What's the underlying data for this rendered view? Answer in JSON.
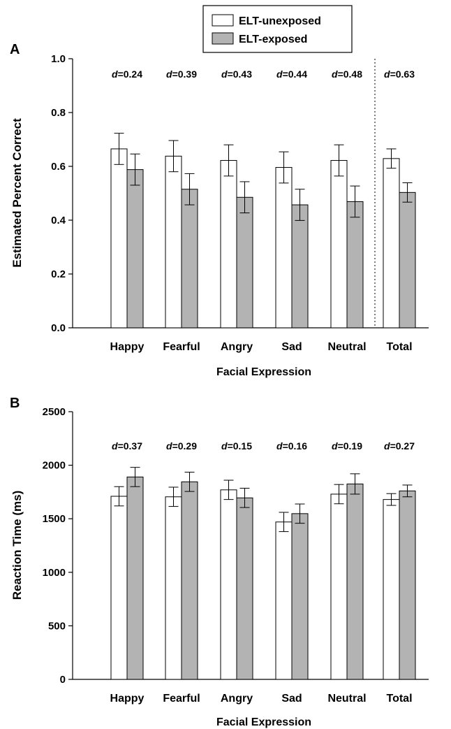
{
  "legend": {
    "items": [
      {
        "label": "ELT-unexposed",
        "color": "#ffffff"
      },
      {
        "label": "ELT-exposed",
        "color": "#b3b3b3"
      }
    ]
  },
  "chart_data": [
    {
      "type": "bar",
      "panel_label": "A",
      "categories": [
        "Happy",
        "Fearful",
        "Angry",
        "Sad",
        "Neutral",
        "Total"
      ],
      "series": [
        {
          "name": "ELT-unexposed",
          "color": "#ffffff",
          "values": [
            0.665,
            0.638,
            0.622,
            0.596,
            0.622,
            0.629
          ],
          "errors": [
            0.058,
            0.058,
            0.058,
            0.058,
            0.058,
            0.036
          ]
        },
        {
          "name": "ELT-exposed",
          "color": "#b3b3b3",
          "values": [
            0.588,
            0.515,
            0.485,
            0.457,
            0.469,
            0.503
          ],
          "errors": [
            0.058,
            0.058,
            0.058,
            0.058,
            0.058,
            0.036
          ]
        }
      ],
      "annotations": [
        {
          "prefix": "d",
          "text": "=0.24"
        },
        {
          "prefix": "d",
          "text": "=0.39"
        },
        {
          "prefix": "d",
          "text": "=0.43"
        },
        {
          "prefix": "d",
          "text": "=0.44"
        },
        {
          "prefix": "d",
          "text": "=0.48"
        },
        {
          "prefix": "d",
          "text": "=0.63"
        }
      ],
      "xlabel": "Facial Expression",
      "ylabel": "Estimated Percent Correct",
      "ylim": [
        0,
        1.0
      ],
      "yticks": [
        "0.0",
        "0.2",
        "0.4",
        "0.6",
        "0.8",
        "1.0"
      ],
      "separator_before_last": true,
      "grid": false
    },
    {
      "type": "bar",
      "panel_label": "B",
      "categories": [
        "Happy",
        "Fearful",
        "Angry",
        "Sad",
        "Neutral",
        "Total"
      ],
      "series": [
        {
          "name": "ELT-unexposed",
          "color": "#ffffff",
          "values": [
            1710,
            1705,
            1770,
            1470,
            1730,
            1680
          ],
          "errors": [
            90,
            90,
            90,
            90,
            90,
            55
          ]
        },
        {
          "name": "ELT-exposed",
          "color": "#b3b3b3",
          "values": [
            1890,
            1845,
            1695,
            1548,
            1825,
            1760
          ],
          "errors": [
            90,
            90,
            90,
            90,
            95,
            55
          ]
        }
      ],
      "annotations": [
        {
          "prefix": "d",
          "text": "=0.37"
        },
        {
          "prefix": "d",
          "text": "=0.29"
        },
        {
          "prefix": "d",
          "text": "=0.15"
        },
        {
          "prefix": "d",
          "text": "=0.16"
        },
        {
          "prefix": "d",
          "text": "=0.19"
        },
        {
          "prefix": "d",
          "text": "=0.27"
        }
      ],
      "xlabel": "Facial Expression",
      "ylabel": "Reaction Time (ms)",
      "ylim": [
        0,
        2500
      ],
      "yticks": [
        "0",
        "500",
        "1000",
        "1500",
        "2000",
        "2500"
      ],
      "separator_before_last": false,
      "grid": false
    }
  ]
}
